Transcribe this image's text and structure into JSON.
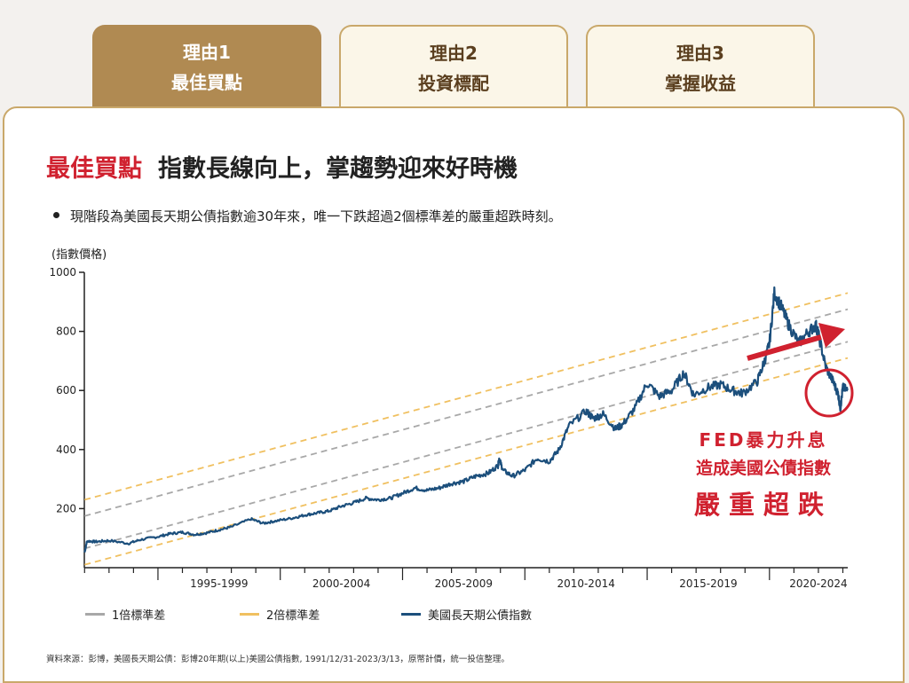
{
  "tabs": [
    {
      "num": "理由1",
      "label": "最佳買點",
      "active": true
    },
    {
      "num": "理由2",
      "label": "投資標配",
      "active": false
    },
    {
      "num": "理由3",
      "label": "掌握收益",
      "active": false
    }
  ],
  "heading": {
    "highlight": "最佳買點",
    "main": "指數長線向上，掌趨勢迎來好時機"
  },
  "bullet": "現階段為美國長天期公債指數逾30年來，唯一下跌超過2個標準差的嚴重超跌時刻。",
  "annotation": {
    "line1": "FED暴力升息",
    "line2": "造成美國公債指數",
    "line3": "嚴重超跌"
  },
  "source": "資料來源：彭博，美國長天期公債：彭博20年期(以上)美國公債指數, 1991/12/31-2023/3/13，原幣計價，統一投信整理。",
  "colors": {
    "accent_red": "#d0212f",
    "tab_active": "#b08a52",
    "line_series": "#1c4f7c",
    "band1": "#a8a8a8",
    "band2": "#f0c060"
  },
  "chart_data": {
    "type": "line",
    "ylabel": "(指數價格)",
    "ylim": [
      0,
      1000
    ],
    "yticks": [
      200,
      400,
      600,
      800,
      1000
    ],
    "xlim": [
      1991.99,
      2023.2
    ],
    "xtick_labels": [
      "1995-1999",
      "2000-2004",
      "2005-2009",
      "2010-2014",
      "2015-2019",
      "2020-2024"
    ],
    "xtick_centers": [
      1997.5,
      2002.5,
      2007.5,
      2012.5,
      2017.5,
      2022.0
    ],
    "series": [
      {
        "name": "美國長天期公債指數",
        "points": [
          [
            1992.0,
            52
          ],
          [
            1992.1,
            90
          ],
          [
            1992.5,
            88
          ],
          [
            1993.0,
            92
          ],
          [
            1993.8,
            82
          ],
          [
            1994.3,
            95
          ],
          [
            1995.0,
            105
          ],
          [
            1995.5,
            115
          ],
          [
            1996.0,
            120
          ],
          [
            1996.5,
            112
          ],
          [
            1997.0,
            118
          ],
          [
            1997.5,
            128
          ],
          [
            1998.0,
            138
          ],
          [
            1998.8,
            165
          ],
          [
            1999.3,
            150
          ],
          [
            1999.8,
            158
          ],
          [
            2000.5,
            168
          ],
          [
            2001.0,
            178
          ],
          [
            2001.5,
            185
          ],
          [
            2002.0,
            192
          ],
          [
            2002.5,
            208
          ],
          [
            2003.0,
            220
          ],
          [
            2003.5,
            235
          ],
          [
            2004.0,
            230
          ],
          [
            2004.5,
            235
          ],
          [
            2005.0,
            252
          ],
          [
            2005.5,
            270
          ],
          [
            2006.0,
            262
          ],
          [
            2006.5,
            270
          ],
          [
            2007.0,
            285
          ],
          [
            2007.5,
            292
          ],
          [
            2008.0,
            310
          ],
          [
            2008.5,
            320
          ],
          [
            2008.9,
            345
          ],
          [
            2008.95,
            370
          ],
          [
            2009.1,
            330
          ],
          [
            2009.5,
            310
          ],
          [
            2010.0,
            330
          ],
          [
            2010.5,
            370
          ],
          [
            2011.0,
            360
          ],
          [
            2011.4,
            400
          ],
          [
            2011.8,
            480
          ],
          [
            2012.5,
            530
          ],
          [
            2012.8,
            505
          ],
          [
            2013.2,
            520
          ],
          [
            2013.7,
            470
          ],
          [
            2014.0,
            485
          ],
          [
            2014.5,
            540
          ],
          [
            2015.0,
            625
          ],
          [
            2015.5,
            580
          ],
          [
            2016.0,
            600
          ],
          [
            2016.5,
            660
          ],
          [
            2016.9,
            585
          ],
          [
            2017.5,
            610
          ],
          [
            2018.0,
            620
          ],
          [
            2018.5,
            600
          ],
          [
            2018.9,
            590
          ],
          [
            2019.5,
            630
          ],
          [
            2019.8,
            700
          ],
          [
            2020.0,
            760
          ],
          [
            2020.2,
            930
          ],
          [
            2020.5,
            880
          ],
          [
            2020.8,
            820
          ],
          [
            2021.2,
            760
          ],
          [
            2021.6,
            800
          ],
          [
            2021.9,
            820
          ],
          [
            2022.0,
            790
          ],
          [
            2022.3,
            680
          ],
          [
            2022.6,
            630
          ],
          [
            2022.8,
            590
          ],
          [
            2022.9,
            540
          ],
          [
            2023.0,
            610
          ],
          [
            2023.2,
            600
          ]
        ]
      },
      {
        "name": "1倍標準差",
        "type": "band",
        "offset_sd": 1
      },
      {
        "name": "2倍標準差",
        "type": "band",
        "offset_sd": 2
      }
    ],
    "trend": {
      "start": [
        1992.0,
        120
      ],
      "end": [
        2023.2,
        820
      ],
      "sd": 55
    }
  }
}
